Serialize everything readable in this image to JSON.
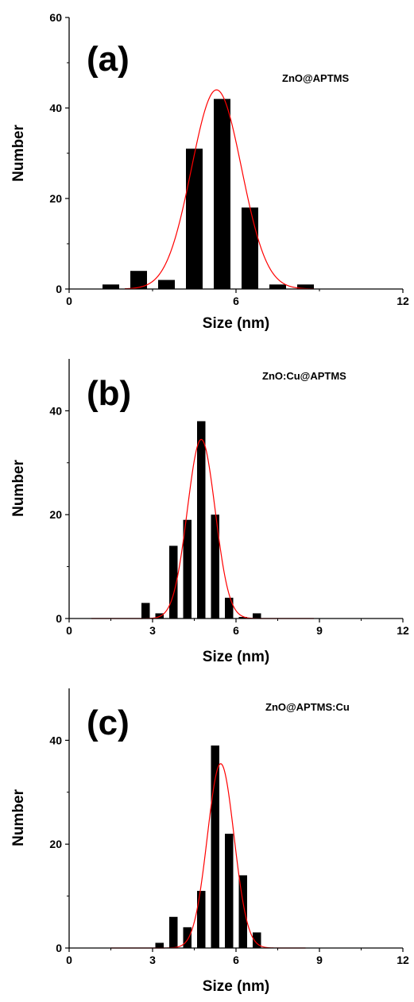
{
  "chart_data": [
    {
      "type": "bar",
      "panel_tag": "(a)",
      "annotation": "ZnO@APTMS",
      "xlabel": "Size (nm)",
      "ylabel": "Number",
      "xlim": [
        0,
        12
      ],
      "ylim": [
        0,
        60
      ],
      "xticks": [
        0,
        6,
        12
      ],
      "yticks": [
        0,
        20,
        40,
        60
      ],
      "bar_width": 0.6,
      "bars": [
        {
          "x": 1.5,
          "y": 1
        },
        {
          "x": 2.5,
          "y": 4
        },
        {
          "x": 3.5,
          "y": 2
        },
        {
          "x": 4.5,
          "y": 31
        },
        {
          "x": 5.5,
          "y": 42
        },
        {
          "x": 6.5,
          "y": 18
        },
        {
          "x": 7.5,
          "y": 1
        },
        {
          "x": 8.5,
          "y": 1
        }
      ],
      "fit": {
        "type": "gaussian",
        "center": 5.3,
        "sigma": 0.9,
        "amplitude": 44,
        "x_range": [
          2.0,
          8.8
        ],
        "color": "#ff0000"
      },
      "bar_color": "#000000"
    },
    {
      "type": "bar",
      "panel_tag": "(b)",
      "annotation": "ZnO:Cu@APTMS",
      "xlabel": "Size (nm)",
      "ylabel": "Number",
      "xlim": [
        0,
        12
      ],
      "ylim": [
        0,
        50
      ],
      "xticks": [
        0,
        3,
        6,
        9,
        12
      ],
      "yticks": [
        0,
        20,
        40
      ],
      "bar_width": 0.3,
      "bars": [
        {
          "x": 2.75,
          "y": 3
        },
        {
          "x": 3.25,
          "y": 1
        },
        {
          "x": 3.75,
          "y": 14
        },
        {
          "x": 4.25,
          "y": 19
        },
        {
          "x": 4.75,
          "y": 38
        },
        {
          "x": 5.25,
          "y": 20
        },
        {
          "x": 5.75,
          "y": 4
        },
        {
          "x": 6.25,
          "y": 0.3
        },
        {
          "x": 6.75,
          "y": 1
        }
      ],
      "fit": {
        "type": "gaussian",
        "center": 4.75,
        "sigma": 0.5,
        "amplitude": 34.5,
        "x_range": [
          0.8,
          8.8
        ],
        "color": "#ff0000"
      },
      "bar_color": "#000000"
    },
    {
      "type": "bar",
      "panel_tag": "(c)",
      "annotation": "ZnO@APTMS:Cu",
      "xlabel": "Size (nm)",
      "ylabel": "Number",
      "xlim": [
        0,
        12
      ],
      "ylim": [
        0,
        50
      ],
      "xticks": [
        0,
        3,
        6,
        9,
        12
      ],
      "yticks": [
        0,
        20,
        40
      ],
      "bar_width": 0.3,
      "bars": [
        {
          "x": 3.25,
          "y": 1
        },
        {
          "x": 3.75,
          "y": 6
        },
        {
          "x": 4.25,
          "y": 4
        },
        {
          "x": 4.75,
          "y": 11
        },
        {
          "x": 5.25,
          "y": 39
        },
        {
          "x": 5.75,
          "y": 22
        },
        {
          "x": 6.25,
          "y": 14
        },
        {
          "x": 6.75,
          "y": 3
        }
      ],
      "fit": {
        "type": "gaussian",
        "center": 5.45,
        "sigma": 0.48,
        "amplitude": 35.5,
        "x_range": [
          1.5,
          8.5
        ],
        "color": "#ff0000"
      },
      "bar_color": "#000000"
    }
  ]
}
